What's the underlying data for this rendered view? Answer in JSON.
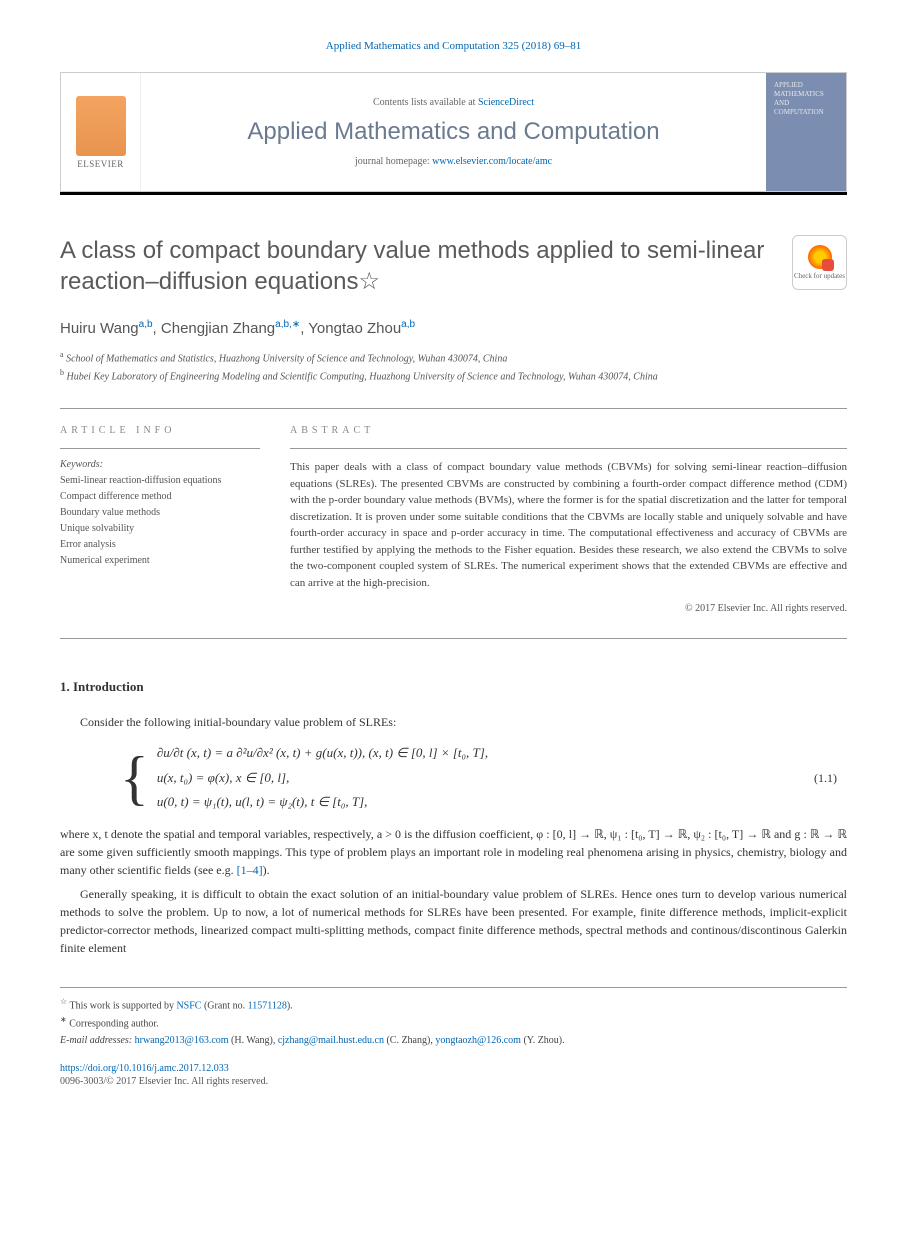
{
  "citation": "Applied Mathematics and Computation 325 (2018) 69–81",
  "header": {
    "contents_prefix": "Contents lists available at ",
    "contents_link": "ScienceDirect",
    "journal_name": "Applied Mathematics and Computation",
    "homepage_prefix": "journal homepage: ",
    "homepage_link": "www.elsevier.com/locate/amc",
    "elsevier": "ELSEVIER",
    "cover_line1": "APPLIED",
    "cover_line2": "MATHEMATICS",
    "cover_line3": "AND",
    "cover_line4": "COMPUTATION"
  },
  "title": "A class of compact boundary value methods applied to semi-linear reaction–diffusion equations",
  "title_star": "☆",
  "crossmark": "Check for updates",
  "authors": {
    "a1_name": "Huiru Wang",
    "a1_sup": "a,b",
    "a2_name": "Chengjian Zhang",
    "a2_sup": "a,b,∗",
    "a3_name": "Yongtao Zhou",
    "a3_sup": "a,b"
  },
  "affiliations": {
    "a": "School of Mathematics and Statistics, Huazhong University of Science and Technology, Wuhan 430074, China",
    "b": "Hubei Key Laboratory of Engineering Modeling and Scientific Computing, Huazhong University of Science and Technology, Wuhan 430074, China"
  },
  "info_header": "ARTICLE INFO",
  "abstract_header": "ABSTRACT",
  "keywords_label": "Keywords:",
  "keywords": [
    "Semi-linear reaction-diffusion equations",
    "Compact difference method",
    "Boundary value methods",
    "Unique solvability",
    "Error analysis",
    "Numerical experiment"
  ],
  "abstract": "This paper deals with a class of compact boundary value methods (CBVMs) for solving semi-linear reaction–diffusion equations (SLREs). The presented CBVMs are constructed by combining a fourth-order compact difference method (CDM) with the p-order boundary value methods (BVMs), where the former is for the spatial discretization and the latter for temporal discretization. It is proven under some suitable conditions that the CBVMs are locally stable and uniquely solvable and have fourth-order accuracy in space and p-order accuracy in time. The computational effectiveness and accuracy of CBVMs are further testified by applying the methods to the Fisher equation. Besides these research, we also extend the CBVMs to solve the two-component coupled system of SLREs. The numerical experiment shows that the extended CBVMs are effective and can arrive at the high-precision.",
  "copyright": "© 2017 Elsevier Inc. All rights reserved.",
  "section1": "1. Introduction",
  "intro_p1": "Consider the following initial-boundary value problem of SLREs:",
  "equation": {
    "line1": "∂u/∂t (x, t) = a ∂²u/∂x² (x, t) + g(u(x, t)),    (x, t) ∈ [0, l] × [t₀, T],",
    "line2": "u(x, t₀) = φ(x),    x ∈ [0, l],",
    "line3": "u(0, t) = ψ₁(t),    u(l, t) = ψ₂(t),    t ∈ [t₀, T],",
    "number": "(1.1)"
  },
  "intro_p2_pre": "where x, t denote the spatial and temporal variables, respectively, a > 0 is the diffusion coefficient, φ : [0, l] → ℝ, ψ₁ : [t₀, T] → ℝ, ψ₂ : [t₀, T] → ℝ and g : ℝ → ℝ are some given sufficiently smooth mappings. This type of problem plays an important role in modeling real phenomena arising in physics, chemistry, biology and many other scientific fields (see e.g. ",
  "intro_p2_link": "[1–4]",
  "intro_p2_post": ").",
  "intro_p3": "Generally speaking, it is difficult to obtain the exact solution of an initial-boundary value problem of SLREs. Hence ones turn to develop various numerical methods to solve the problem. Up to now, a lot of numerical methods for SLREs have been presented. For example, finite difference methods, implicit-explicit predictor-corrector methods, linearized compact multi-splitting methods, compact finite difference methods, spectral methods and continous/discontinous Galerkin finite element",
  "footnotes": {
    "star_pre": "This work is supported by ",
    "star_link": "NSFC",
    "star_post": " (Grant no. ",
    "star_grant": "11571128",
    "star_end": ").",
    "corr": "Corresponding author.",
    "email_label": "E-mail addresses: ",
    "e1": "hrwang2013@163.com",
    "e1_name": " (H. Wang), ",
    "e2": "cjzhang@mail.hust.edu.cn",
    "e2_name": " (C. Zhang), ",
    "e3": "yongtaozh@126.com",
    "e3_name": " (Y. Zhou)."
  },
  "doi": "https://doi.org/10.1016/j.amc.2017.12.033",
  "issn": "0096-3003/© 2017 Elsevier Inc. All rights reserved.",
  "colors": {
    "link": "#0066b3",
    "journal_title": "#6b7a8f",
    "cover_bg": "#7b8db0",
    "elsevier_orange": "#f4a460"
  }
}
